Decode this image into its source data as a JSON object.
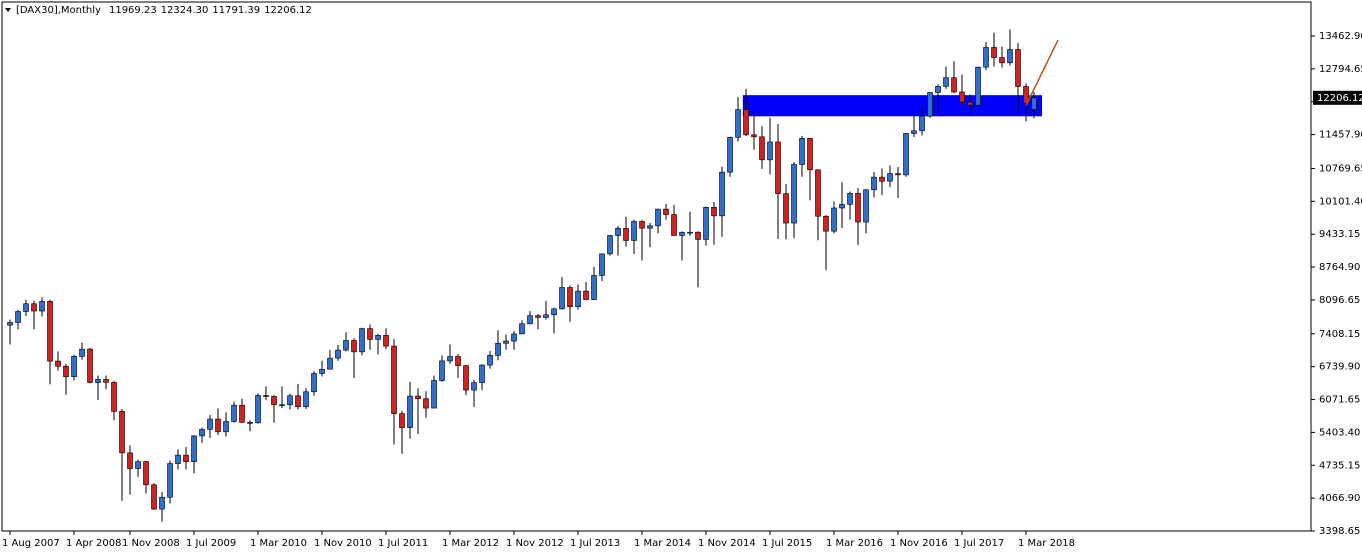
{
  "chart_data": {
    "type": "candlestick",
    "title": "[DAX30],Monthly",
    "ohlc_labels": [
      "11969.23",
      "12324.30",
      "11791.39",
      "12206.12"
    ],
    "bull_color": "#2f6fd1",
    "bear_color": "#d42020",
    "zone_color": "#0000ff",
    "trendline_color": "#b5561b",
    "ylim": [
      3398.65,
      14154
    ],
    "yticks": [
      {
        "value": 13462.9,
        "label": "13462.90"
      },
      {
        "value": 12794.65,
        "label": "12794.65"
      },
      {
        "value": 12126.4,
        "label": "12126.40"
      },
      {
        "value": 11457.9,
        "label": "11457.90"
      },
      {
        "value": 10769.65,
        "label": "10769.65"
      },
      {
        "value": 10101.4,
        "label": "10101.40"
      },
      {
        "value": 9433.15,
        "label": "9433.15"
      },
      {
        "value": 8764.9,
        "label": "8764.90"
      },
      {
        "value": 8096.65,
        "label": "8096.65"
      },
      {
        "value": 7408.15,
        "label": "7408.15"
      },
      {
        "value": 6739.9,
        "label": "6739.90"
      },
      {
        "value": 6071.65,
        "label": "6071.65"
      },
      {
        "value": 5403.4,
        "label": "5403.40"
      },
      {
        "value": 4735.15,
        "label": "4735.15"
      },
      {
        "value": 4066.9,
        "label": "4066.90"
      },
      {
        "value": 3398.65,
        "label": "3398.65"
      }
    ],
    "categories": [
      "1 Aug 2007",
      null,
      null,
      null,
      null,
      null,
      null,
      null,
      "1 Apr 2008",
      null,
      null,
      null,
      null,
      null,
      null,
      "1 Nov 2008",
      null,
      null,
      null,
      null,
      null,
      null,
      null,
      "1 Jul 2009",
      null,
      null,
      null,
      null,
      null,
      null,
      null,
      "1 Mar 2010",
      null,
      null,
      null,
      null,
      null,
      null,
      null,
      "1 Nov 2010",
      null,
      null,
      null,
      null,
      null,
      null,
      null,
      "1 Jul 2011",
      null,
      null,
      null,
      null,
      null,
      null,
      null,
      "1 Mar 2012",
      null,
      null,
      null,
      null,
      null,
      null,
      null,
      "1 Nov 2012",
      null,
      null,
      null,
      null,
      null,
      null,
      null,
      "1 Jul 2013",
      null,
      null,
      null,
      null,
      null,
      null,
      null,
      "1 Mar 2014",
      null,
      null,
      null,
      null,
      null,
      null,
      null,
      "1 Nov 2014",
      null,
      null,
      null,
      null,
      null,
      null,
      null,
      "1 Jul 2015",
      null,
      null,
      null,
      null,
      null,
      null,
      null,
      "1 Mar 2016",
      null,
      null,
      null,
      null,
      null,
      null,
      null,
      "1 Nov 2016",
      null,
      null,
      null,
      null,
      null,
      null,
      null,
      "1 Jul 2017",
      null,
      null,
      null,
      null,
      null,
      null,
      null,
      "1 Mar 2018",
      null
    ],
    "open": [
      7584,
      7638,
      7862,
      8019,
      7871,
      8067,
      6852,
      6748,
      6535,
      6949,
      7097,
      6418,
      6480,
      6422,
      5831,
      4988,
      4669,
      4810,
      4338,
      3844,
      4085,
      4770,
      4941,
      4809,
      5332,
      5465,
      5675,
      5415,
      5626,
      5957,
      5608,
      5598,
      6154,
      6136,
      5965,
      5966,
      6148,
      5925,
      6229,
      6601,
      6688,
      6914,
      7077,
      7272,
      7041,
      7514,
      7294,
      7376,
      7158,
      5785,
      5502,
      6141,
      6088,
      5898,
      6458,
      6856,
      6947,
      6761,
      6264,
      6416,
      6772,
      6970,
      7216,
      7260,
      7406,
      7612,
      7776,
      7741,
      7795,
      7914,
      8349,
      7959,
      8276,
      8104,
      8594,
      9033,
      9406,
      9552,
      9306,
      9692,
      9556,
      9603,
      9943,
      9833,
      9407,
      9470,
      9474,
      9327,
      9980,
      9806,
      10694,
      11402,
      11966,
      11454,
      11413,
      10945,
      11309,
      10259,
      9660,
      10850,
      11382,
      10743,
      9798,
      9495,
      9966,
      10039,
      10263,
      9680,
      10337,
      10593,
      10511,
      10665,
      10640,
      11481,
      11535,
      11834,
      12313,
      12438,
      12615,
      12325,
      12118,
      12056,
      12829,
      13230,
      13024,
      12918,
      13189,
      12436,
      11969.23
    ],
    "high": [
      7700,
      7900,
      8100,
      8080,
      8150,
      8100,
      7050,
      6800,
      6980,
      7230,
      7120,
      6560,
      6560,
      6450,
      5880,
      5140,
      4850,
      4820,
      4370,
      4190,
      4830,
      5060,
      5110,
      5350,
      5500,
      5760,
      5890,
      5810,
      6030,
      6090,
      5650,
      6200,
      6340,
      6160,
      6340,
      6190,
      6390,
      6300,
      6650,
      6860,
      7080,
      7180,
      7440,
      7320,
      7530,
      7600,
      7410,
      7520,
      7300,
      5840,
      6430,
      6300,
      6240,
      6560,
      6970,
      7190,
      7000,
      6780,
      6470,
      6790,
      7060,
      7480,
      7390,
      7460,
      7680,
      7870,
      7810,
      8080,
      7940,
      8560,
      8390,
      8410,
      8460,
      8770,
      9040,
      9420,
      9600,
      9790,
      9730,
      9720,
      9660,
      9950,
      10050,
      10030,
      9490,
      9890,
      9490,
      9990,
      10090,
      10810,
      11420,
      12220,
      12390,
      11920,
      11630,
      11800,
      11670,
      10450,
      10900,
      11430,
      11390,
      10750,
      9820,
      10100,
      10490,
      10300,
      10370,
      10350,
      10700,
      10770,
      10830,
      10800,
      11490,
      11890,
      12030,
      12330,
      12480,
      12840,
      12950,
      12680,
      12270,
      12840,
      13340,
      13530,
      13250,
      13596,
      13320,
      12500,
      12324.3
    ],
    "low": [
      7190,
      7500,
      7770,
      7500,
      7760,
      6380,
      6660,
      6170,
      6460,
      6880,
      6400,
      6060,
      6280,
      5650,
      4014,
      4140,
      4500,
      4160,
      3830,
      3589,
      3960,
      4650,
      4650,
      4570,
      5190,
      5290,
      5350,
      5320,
      5600,
      5590,
      5430,
      5580,
      6060,
      5600,
      5900,
      5870,
      5870,
      5880,
      6150,
      6540,
      6690,
      6860,
      7050,
      6510,
      6970,
      7080,
      6990,
      7100,
      5160,
      4966,
      5280,
      5370,
      5700,
      5900,
      6430,
      6800,
      6510,
      6160,
      5920,
      6260,
      6700,
      6870,
      7080,
      7080,
      7410,
      7600,
      7500,
      7700,
      7420,
      7900,
      7650,
      7900,
      8100,
      8100,
      8480,
      9000,
      9000,
      9180,
      9030,
      8900,
      9170,
      9450,
      9730,
      9400,
      8900,
      9400,
      8355,
      9200,
      9220,
      9380,
      10600,
      11320,
      11430,
      11150,
      10760,
      10650,
      9338,
      9330,
      9350,
      10600,
      10120,
      9310,
      8699,
      9450,
      9560,
      9730,
      9214,
      9450,
      10180,
      10230,
      10390,
      10170,
      10600,
      11410,
      11440,
      11800,
      11930,
      12390,
      12300,
      12060,
      11870,
      12050,
      12770,
      12840,
      12820,
      12860,
      11870,
      11727,
      11791.39
    ],
    "close": [
      7638,
      7862,
      8019,
      7871,
      8067,
      6852,
      6748,
      6535,
      6949,
      7097,
      6418,
      6480,
      6422,
      5831,
      4988,
      4669,
      4810,
      4338,
      3844,
      4085,
      4770,
      4941,
      4809,
      5332,
      5465,
      5675,
      5415,
      5626,
      5957,
      5608,
      5598,
      6154,
      6136,
      5965,
      5966,
      6148,
      5925,
      6229,
      6601,
      6688,
      6914,
      7077,
      7272,
      7041,
      7514,
      7294,
      7376,
      7158,
      5785,
      5502,
      6141,
      6088,
      5898,
      6458,
      6856,
      6947,
      6761,
      6264,
      6416,
      6772,
      6970,
      7216,
      7260,
      7406,
      7612,
      7776,
      7741,
      7795,
      7914,
      8349,
      7959,
      8276,
      8104,
      8594,
      9033,
      9406,
      9552,
      9306,
      9692,
      9556,
      9603,
      9943,
      9833,
      9407,
      9470,
      9474,
      9327,
      9980,
      9806,
      10694,
      11402,
      11966,
      11454,
      11413,
      10945,
      11309,
      10259,
      9660,
      10850,
      11382,
      10743,
      9798,
      9495,
      9966,
      10039,
      10263,
      9680,
      10337,
      10593,
      10511,
      10665,
      10640,
      11481,
      11535,
      11834,
      12313,
      12438,
      12615,
      12325,
      12118,
      12056,
      12829,
      13230,
      13024,
      12918,
      13189,
      12436,
      12097,
      12206.12
    ],
    "zone": [
      11830,
      12260
    ],
    "trendline": [
      12050,
      13380
    ]
  }
}
